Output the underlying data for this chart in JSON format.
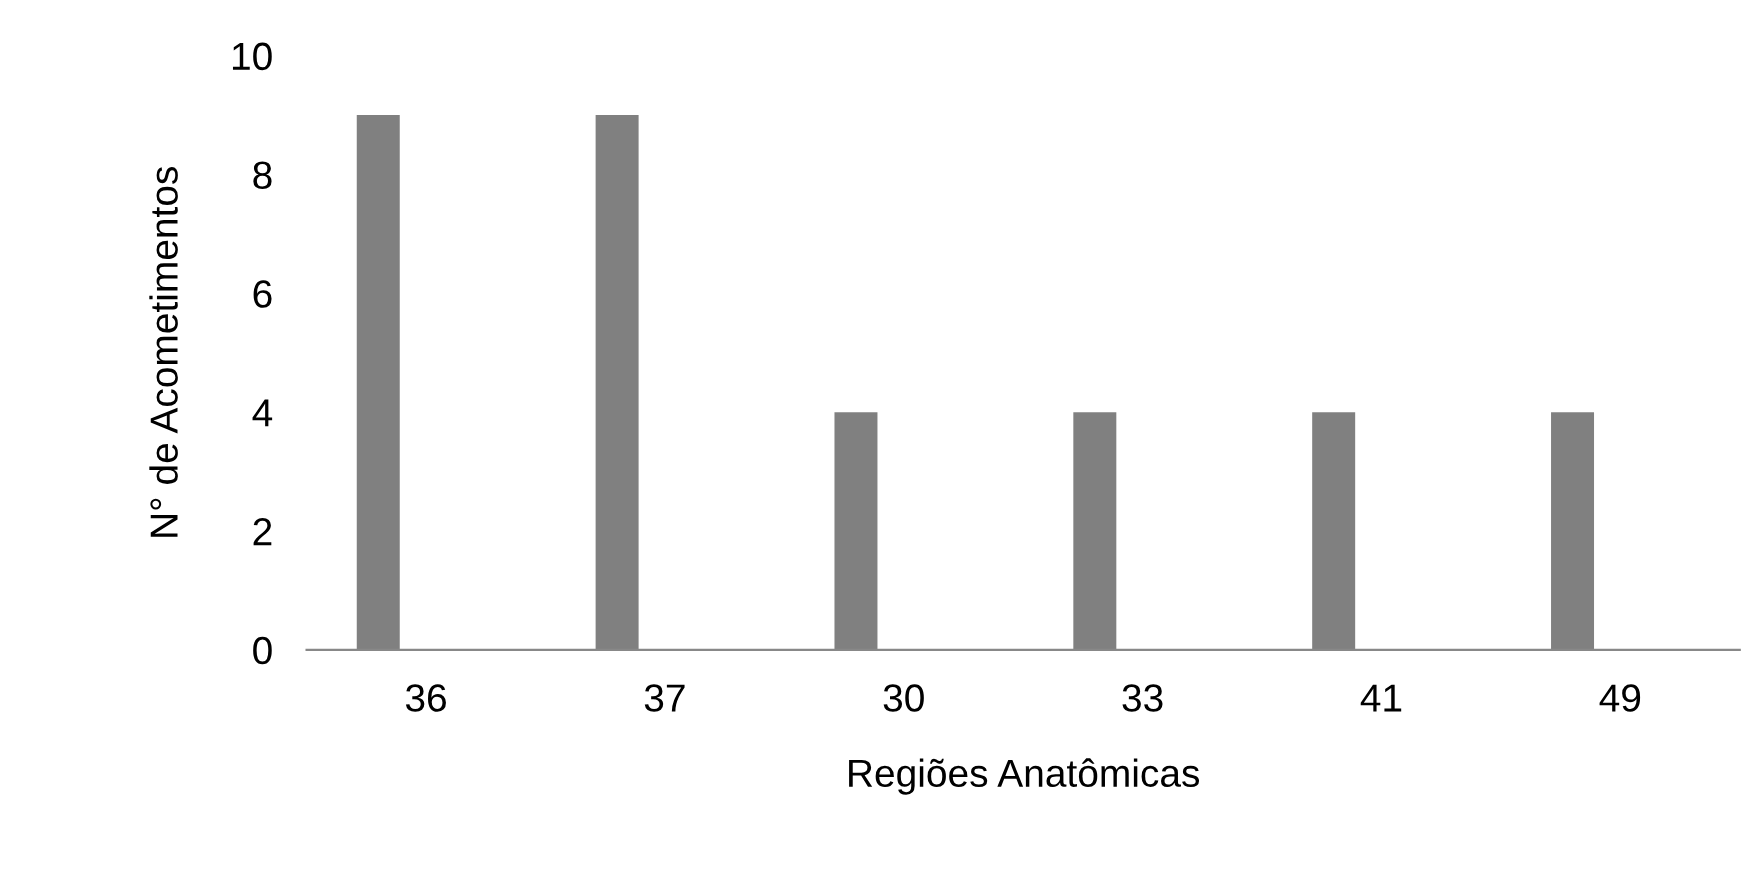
{
  "chart_data": {
    "type": "bar",
    "xlabel": "Regiões Anatômicas",
    "ylabel": "N° de Acometimentos",
    "categories": [
      "36",
      "37",
      "30",
      "33",
      "41",
      "49"
    ],
    "values": [
      9,
      9,
      4,
      4,
      4,
      4
    ],
    "color": "#808080",
    "ylim": [
      0,
      10
    ],
    "yticks": [
      0,
      2,
      4,
      6,
      8,
      10
    ],
    "grid": false,
    "legend": false
  }
}
